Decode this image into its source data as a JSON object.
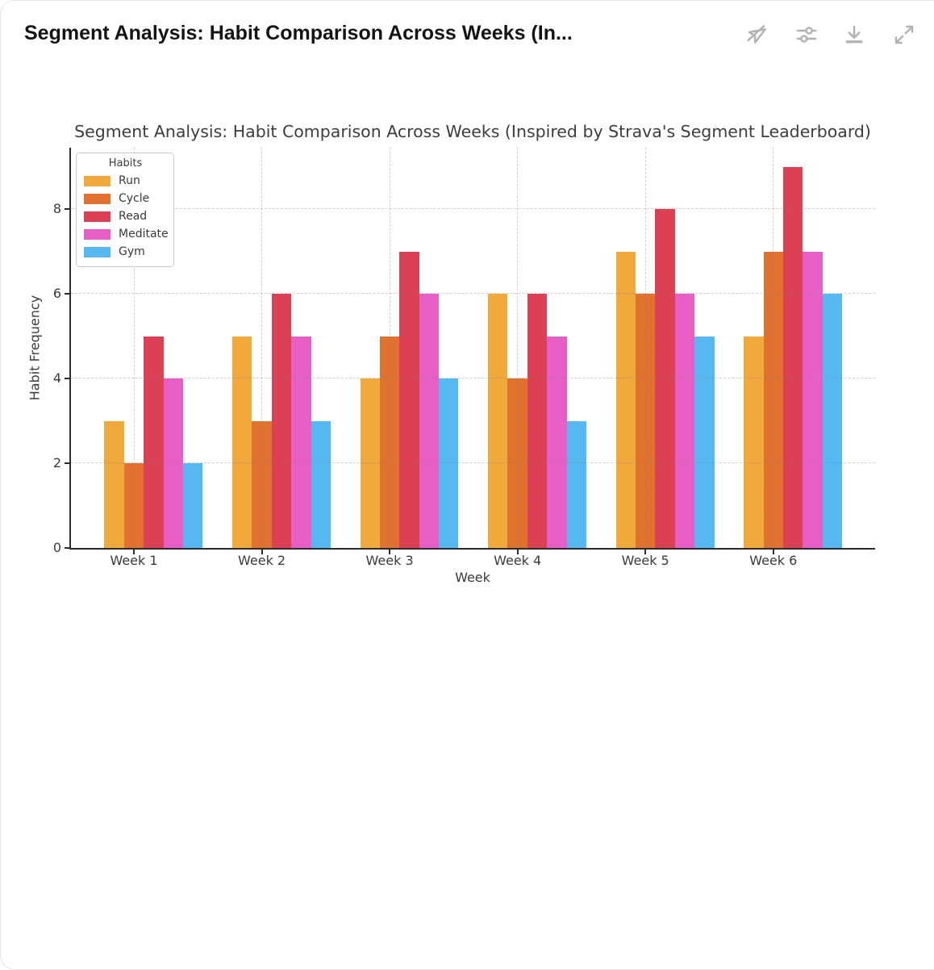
{
  "window": {
    "title": "Segment Analysis: Habit Comparison Across Weeks (In...",
    "toolbar": {
      "icons": [
        {
          "name": "pointer-off-icon"
        },
        {
          "name": "sliders-icon"
        },
        {
          "name": "download-icon"
        },
        {
          "name": "expand-icon"
        }
      ],
      "icon_color": "#b3b3b3"
    }
  },
  "chart_data": {
    "type": "bar",
    "title": "Segment Analysis: Habit Comparison Across Weeks (Inspired by Strava's Segment Leaderboard)",
    "xlabel": "Week",
    "ylabel": "Habit Frequency",
    "categories": [
      "Week 1",
      "Week 2",
      "Week 3",
      "Week 4",
      "Week 5",
      "Week 6"
    ],
    "series": [
      {
        "name": "Run",
        "color": "#F2A93C",
        "values": [
          3,
          5,
          4,
          6,
          7,
          5
        ]
      },
      {
        "name": "Cycle",
        "color": "#E0712E",
        "values": [
          2,
          3,
          5,
          4,
          6,
          7
        ]
      },
      {
        "name": "Read",
        "color": "#DC4055",
        "values": [
          5,
          6,
          7,
          6,
          8,
          9
        ]
      },
      {
        "name": "Meditate",
        "color": "#E75FC4",
        "values": [
          4,
          5,
          6,
          5,
          6,
          7
        ]
      },
      {
        "name": "Gym",
        "color": "#55B8F0",
        "values": [
          2,
          3,
          4,
          3,
          5,
          6
        ]
      }
    ],
    "legend_title": "Habits",
    "legend_position": "upper-left",
    "yticks": [
      0,
      2,
      4,
      6,
      8
    ],
    "ylim": [
      0,
      9.45
    ],
    "grid": true,
    "grid_style": "dashed"
  }
}
